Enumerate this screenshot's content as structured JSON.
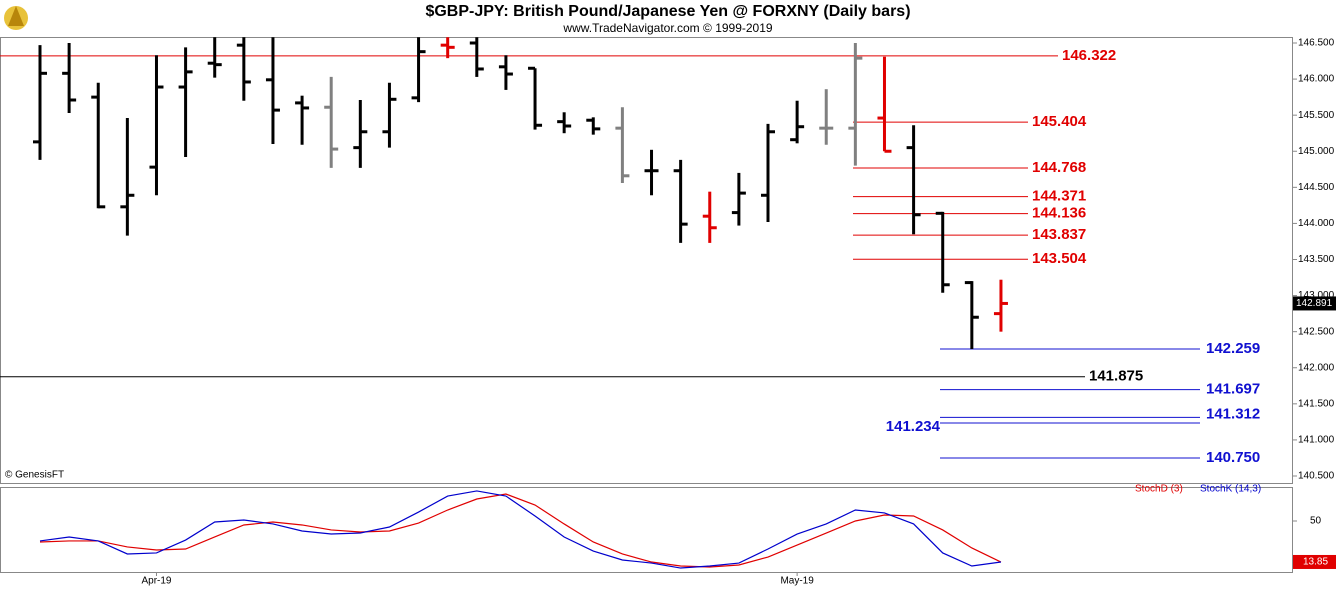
{
  "chart_data": [
    {
      "type": "ohlc",
      "title": "$GBP-JPY:  British Pound/Japanese Yen @ FORXNY  (Daily bars)",
      "subtitle": "www.TradeNavigator.com © 1999-2019",
      "source": "© GenesisFT",
      "categories": [
        null,
        null,
        null,
        null,
        "Apr-19",
        null,
        null,
        null,
        null,
        null,
        null,
        null,
        null,
        null,
        null,
        null,
        null,
        null,
        null,
        null,
        null,
        null,
        null,
        null,
        null,
        null,
        "May-19",
        null,
        null,
        null,
        null,
        null,
        null,
        null
      ],
      "open": [
        145.13,
        146.08,
        145.75,
        144.23,
        144.78,
        145.89,
        146.22,
        146.47,
        145.99,
        145.67,
        145.61,
        145.05,
        145.27,
        145.74,
        146.47,
        146.5,
        146.17,
        146.15,
        145.41,
        145.43,
        145.32,
        144.73,
        144.73,
        144.1,
        144.15,
        144.39,
        145.16,
        145.32,
        145.32,
        145.46,
        145.05,
        144.14,
        143.18,
        142.75
      ],
      "high": [
        146.47,
        146.5,
        145.95,
        145.46,
        146.33,
        146.44,
        146.58,
        146.58,
        146.58,
        145.77,
        146.03,
        145.71,
        145.95,
        146.58,
        146.58,
        146.58,
        146.33,
        146.15,
        145.54,
        145.47,
        145.61,
        145.02,
        144.88,
        144.44,
        144.7,
        145.38,
        145.7,
        145.86,
        146.5,
        146.31,
        145.36,
        144.16,
        143.2,
        143.22
      ],
      "low": [
        144.88,
        145.53,
        144.21,
        143.83,
        144.39,
        144.92,
        146.02,
        145.7,
        145.1,
        145.09,
        144.77,
        144.77,
        145.05,
        145.68,
        146.29,
        146.03,
        145.85,
        145.3,
        145.25,
        145.23,
        144.56,
        144.39,
        143.73,
        143.73,
        143.97,
        144.02,
        145.11,
        145.09,
        144.8,
        145.0,
        143.85,
        143.04,
        142.259,
        142.5
      ],
      "close": [
        146.08,
        145.71,
        144.23,
        144.39,
        145.89,
        146.1,
        146.2,
        145.96,
        145.57,
        145.6,
        145.03,
        145.27,
        145.72,
        146.38,
        146.44,
        146.14,
        146.07,
        145.36,
        145.35,
        145.31,
        144.66,
        144.73,
        143.99,
        143.94,
        144.42,
        145.27,
        145.34,
        145.32,
        146.29,
        145.0,
        144.12,
        143.15,
        142.7,
        142.891
      ],
      "bar_colors": [
        "#000000",
        "#000000",
        "#000000",
        "#000000",
        "#000000",
        "#000000",
        "#000000",
        "#000000",
        "#000000",
        "#000000",
        "#808080",
        "#000000",
        "#000000",
        "#000000",
        "#e00000",
        "#000000",
        "#000000",
        "#000000",
        "#000000",
        "#000000",
        "#808080",
        "#000000",
        "#000000",
        "#e00000",
        "#000000",
        "#000000",
        "#000000",
        "#808080",
        "#808080",
        "#e00000",
        "#000000",
        "#000000",
        "#000000",
        "#e00000"
      ],
      "last_value": {
        "value": 142.891,
        "label": "142.891"
      },
      "ylim": [
        140.5,
        146.5
      ],
      "yticks": [
        {
          "value": 146.5,
          "label": "146.500"
        },
        {
          "value": 146,
          "label": "146.000"
        },
        {
          "value": 145.5,
          "label": "145.500"
        },
        {
          "value": 145,
          "label": "145.000"
        },
        {
          "value": 144.5,
          "label": "144.500"
        },
        {
          "value": 144,
          "label": "144.000"
        },
        {
          "value": 143.5,
          "label": "143.500"
        },
        {
          "value": 143,
          "label": "143.000"
        },
        {
          "value": 142.5,
          "label": "142.500"
        },
        {
          "value": 142,
          "label": "142.000"
        },
        {
          "value": 141.5,
          "label": "141.500"
        },
        {
          "value": 141,
          "label": "141.000"
        },
        {
          "value": 140.5,
          "label": "140.500"
        }
      ],
      "levels": [
        {
          "value": 146.322,
          "color": "#e00000"
        },
        {
          "value": 145.404,
          "color": "#e00000"
        },
        {
          "value": 144.768,
          "color": "#e00000"
        },
        {
          "value": 144.371,
          "color": "#e00000"
        },
        {
          "value": 144.136,
          "color": "#e00000"
        },
        {
          "value": 143.837,
          "color": "#e00000"
        },
        {
          "value": 143.504,
          "color": "#e00000"
        },
        {
          "value": 142.259,
          "color": "#1010d0"
        },
        {
          "value": 141.875,
          "color": "#000000"
        },
        {
          "value": 141.697,
          "color": "#1010d0"
        },
        {
          "value": 141.312,
          "color": "#1010d0"
        },
        {
          "value": 141.234,
          "color": "#1010d0"
        },
        {
          "value": 140.75,
          "label": "140.750",
          "color": "#1010d0"
        }
      ]
    },
    {
      "type": "line",
      "series": [
        {
          "name": "StochD (3)",
          "color": "#e00000",
          "values": [
            31.5,
            32.4,
            32.4,
            27.1,
            24.4,
            25.3,
            35.9,
            46.5,
            49.1,
            46.5,
            42.1,
            40.3,
            41.2,
            48.2,
            59.7,
            69.4,
            73.8,
            64.1,
            47.4,
            31.5,
            20.9,
            13.8,
            10.3,
            9.4,
            11.2,
            18.2,
            28.8,
            39.4,
            50.0,
            55.3,
            54.4,
            42.1,
            26.2,
            13.8
          ]
        },
        {
          "name": "StochK (14,3)",
          "color": "#0000cc",
          "values": [
            32.4,
            35.9,
            32.4,
            20.9,
            21.8,
            33.2,
            49.1,
            50.9,
            47.4,
            41.2,
            38.5,
            39.4,
            44.7,
            57.9,
            72.0,
            76.5,
            72.0,
            54.4,
            35.9,
            23.5,
            15.6,
            12.9,
            8.5,
            10.3,
            12.9,
            25.3,
            38.5,
            47.4,
            59.7,
            57.1,
            47.4,
            21.8,
            10.3,
            13.85
          ]
        }
      ],
      "last_value": 13.85,
      "ylim": [
        5,
        80
      ],
      "yticks": [
        50
      ]
    }
  ]
}
